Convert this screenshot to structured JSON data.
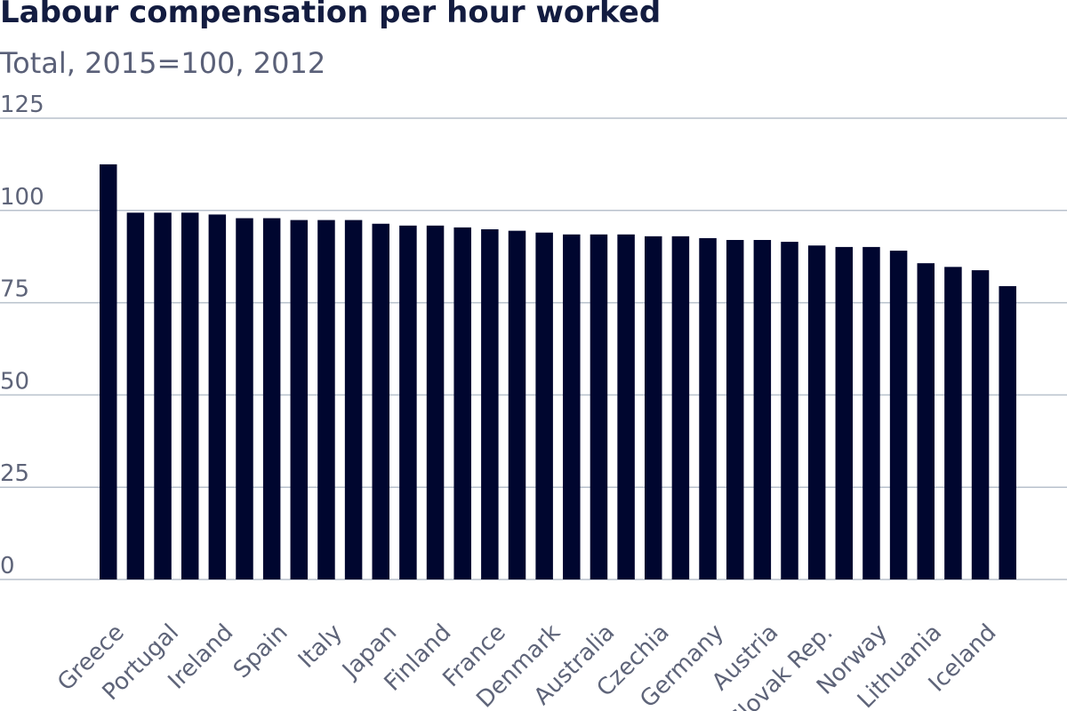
{
  "chart_data": {
    "type": "bar",
    "title": "Labour compensation per hour worked",
    "subtitle": "Total, 2015=100, 2012",
    "xlabel": "",
    "ylabel": "",
    "ylim": [
      0,
      125
    ],
    "yticks": [
      0,
      25,
      50,
      75,
      100,
      125
    ],
    "grid": true,
    "legend": "none",
    "bar_color": "#00062f",
    "categories": [
      "Greece",
      "",
      "Portugal",
      "",
      "Ireland",
      "",
      "Spain",
      "",
      "Italy",
      "",
      "Japan",
      "",
      "Finland",
      "",
      "France",
      "",
      "Denmark",
      "",
      "Australia",
      "",
      "Czechia",
      "",
      "Germany",
      "",
      "Austria",
      "",
      "Slovak Rep.",
      "",
      "Norway",
      "",
      "Lithuania",
      "",
      "Iceland",
      ""
    ],
    "values": [
      112.5,
      99.4,
      99.4,
      99.4,
      98.9,
      97.9,
      97.9,
      97.4,
      97.4,
      97.4,
      96.4,
      95.9,
      95.9,
      95.4,
      94.9,
      94.5,
      94.0,
      93.5,
      93.5,
      93.5,
      93.0,
      93.0,
      92.5,
      92.0,
      92.0,
      91.5,
      90.5,
      90.1,
      90.1,
      89.1,
      85.7,
      84.7,
      83.8,
      79.5
    ]
  }
}
